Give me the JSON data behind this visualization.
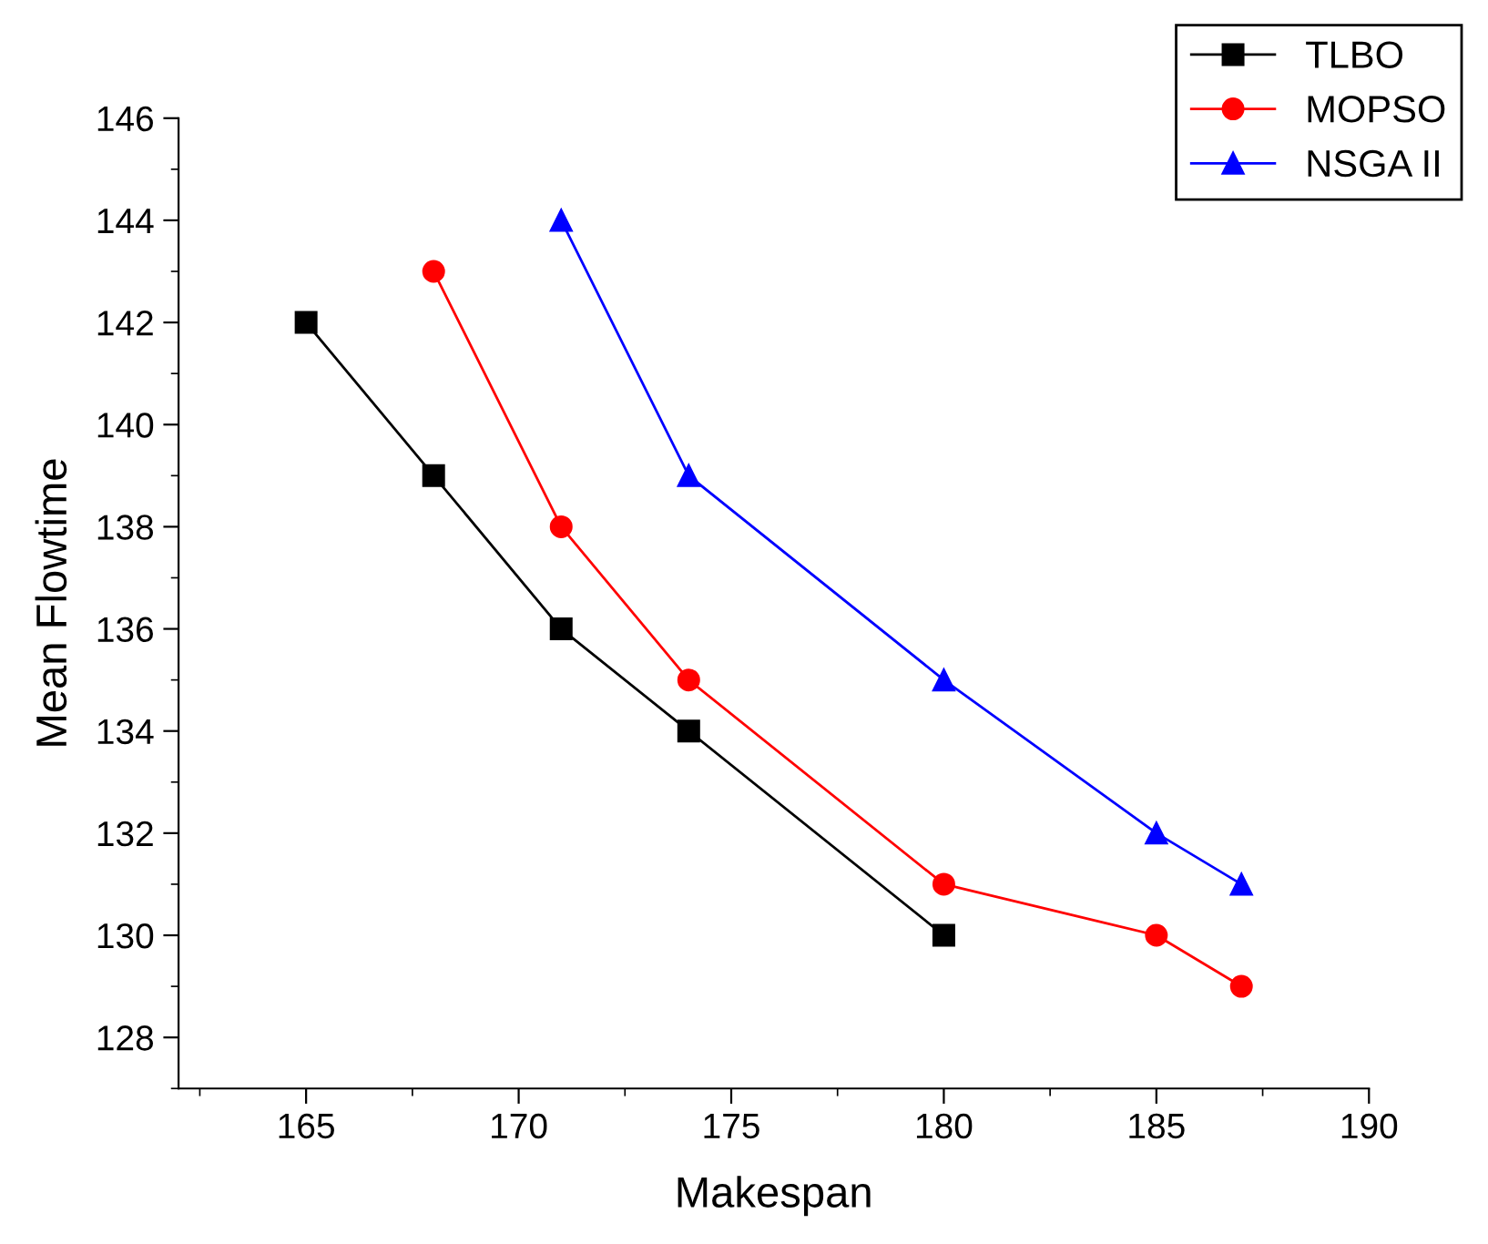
{
  "chart_data": {
    "type": "line",
    "xlabel": "Makespan",
    "ylabel": "Mean Flowtime",
    "xlim": [
      162,
      190
    ],
    "xticks": [
      165,
      170,
      175,
      180,
      185,
      190
    ],
    "ylim": [
      127,
      146
    ],
    "yticks": [
      128,
      130,
      132,
      134,
      136,
      138,
      140,
      142,
      144,
      146
    ],
    "grid": false,
    "legend": "top right",
    "line_style": "solid",
    "series": [
      {
        "name": "TLBO",
        "color": "#000000",
        "marker": "square",
        "x": [
          165,
          168,
          171,
          174,
          180
        ],
        "values": [
          142,
          139,
          136,
          134,
          130
        ]
      },
      {
        "name": "MOPSO",
        "color": "#ff0000",
        "marker": "circle",
        "x": [
          168,
          171,
          174,
          180,
          185,
          187
        ],
        "values": [
          143,
          138,
          135,
          131,
          130,
          129
        ]
      },
      {
        "name": "NSGA II",
        "color": "#0000ff",
        "marker": "triangle",
        "x": [
          171,
          174,
          180,
          185,
          187
        ],
        "values": [
          144,
          139,
          135,
          132,
          131
        ]
      }
    ]
  }
}
